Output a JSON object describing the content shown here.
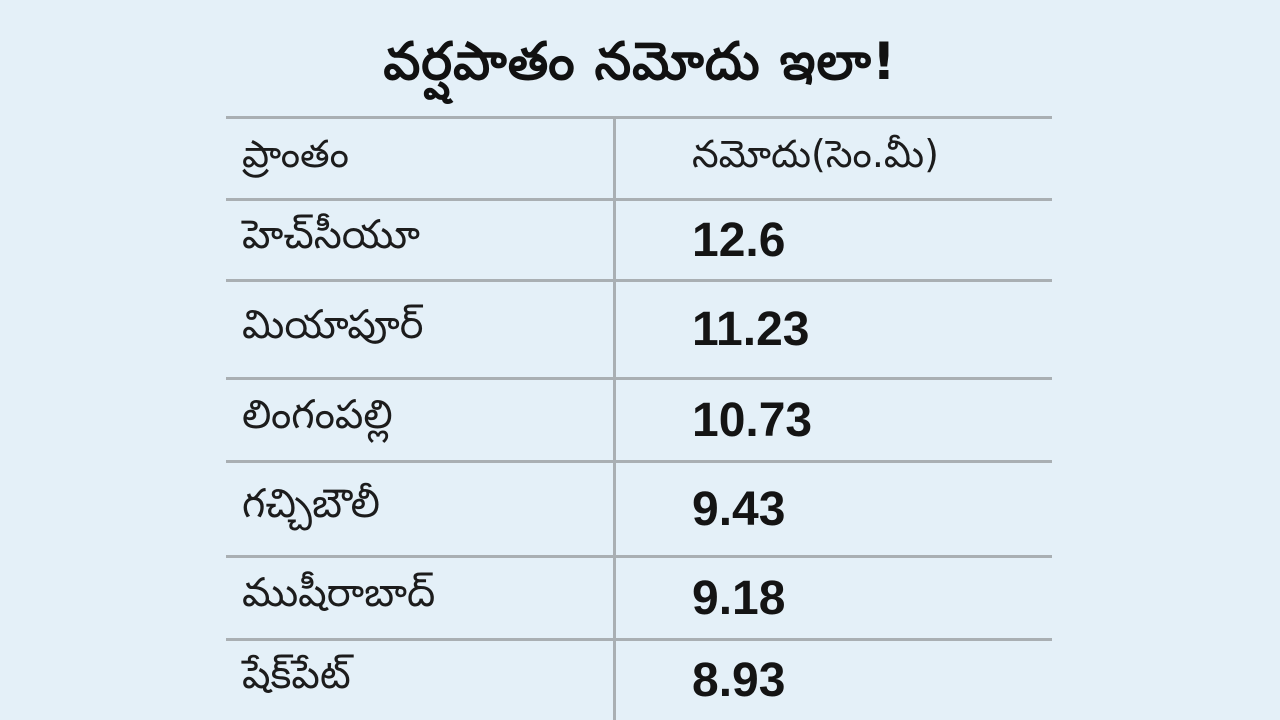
{
  "title": "వర్షపాతం నమోదు ఇలా!",
  "table": {
    "headers": {
      "area": "ప్రాంతం",
      "value": "నమోదు(సెం.మీ)"
    },
    "rows": [
      {
        "area": "హెచ్‌సీయూ",
        "value": "12.6"
      },
      {
        "area": "మియాపూర్‌",
        "value": "11.23"
      },
      {
        "area": "లింగంపల్లి",
        "value": "10.73"
      },
      {
        "area": "గచ్చిబౌలీ",
        "value": "9.43"
      },
      {
        "area": "ముషీరాబాద్‌",
        "value": "9.18"
      },
      {
        "area": "షేక్‌పేట్‌",
        "value": "8.93"
      }
    ]
  }
}
